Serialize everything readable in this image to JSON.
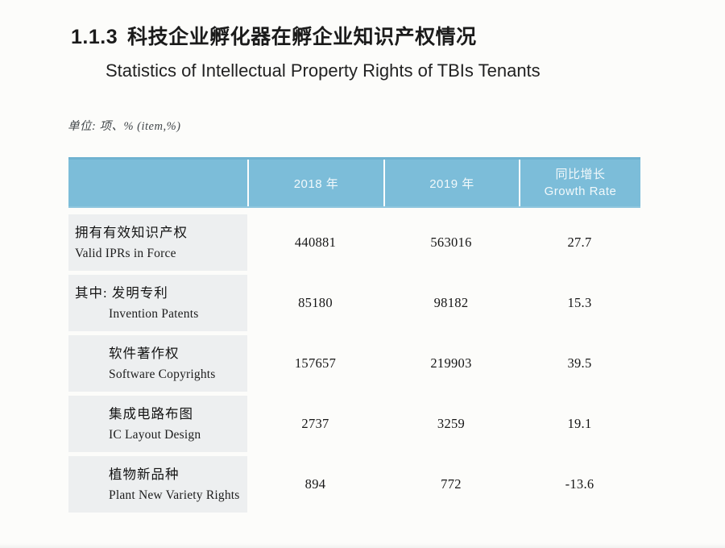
{
  "page": {
    "section_number": "1.1.3",
    "title_zh": "科技企业孵化器在孵企业知识产权情况",
    "title_en": "Statistics of Intellectual Property Rights of TBIs Tenants",
    "unit_note": "单位: 项、% (item,%)"
  },
  "table": {
    "header": {
      "col_label": "",
      "col_2018": "2018 年",
      "col_2019": "2019 年",
      "col_growth_zh": "同比增长",
      "col_growth_en": "Growth Rate"
    },
    "rows": [
      {
        "zh": "拥有有效知识产权",
        "en": "Valid IPRs in Force",
        "y2018": "440881",
        "y2019": "563016",
        "growth": "27.7"
      },
      {
        "zh": "其中: 发明专利",
        "en": "Invention Patents",
        "y2018": "85180",
        "y2019": "98182",
        "growth": "15.3"
      },
      {
        "zh": "软件著作权",
        "en": "Software Copyrights",
        "y2018": "157657",
        "y2019": "219903",
        "growth": "39.5"
      },
      {
        "zh": "集成电路布图",
        "en": "IC Layout Design",
        "y2018": "2737",
        "y2019": "3259",
        "growth": "19.1"
      },
      {
        "zh": "植物新品种",
        "en": "Plant New Variety Rights",
        "y2018": "894",
        "y2019": "772",
        "growth": "-13.6"
      }
    ]
  },
  "colors": {
    "header_bg": "#7cbdd9",
    "label_cell_bg": "#edeff0",
    "header_text": "#f2f9fb",
    "body_text": "#161616",
    "page_bg": "#fcfcfa"
  }
}
